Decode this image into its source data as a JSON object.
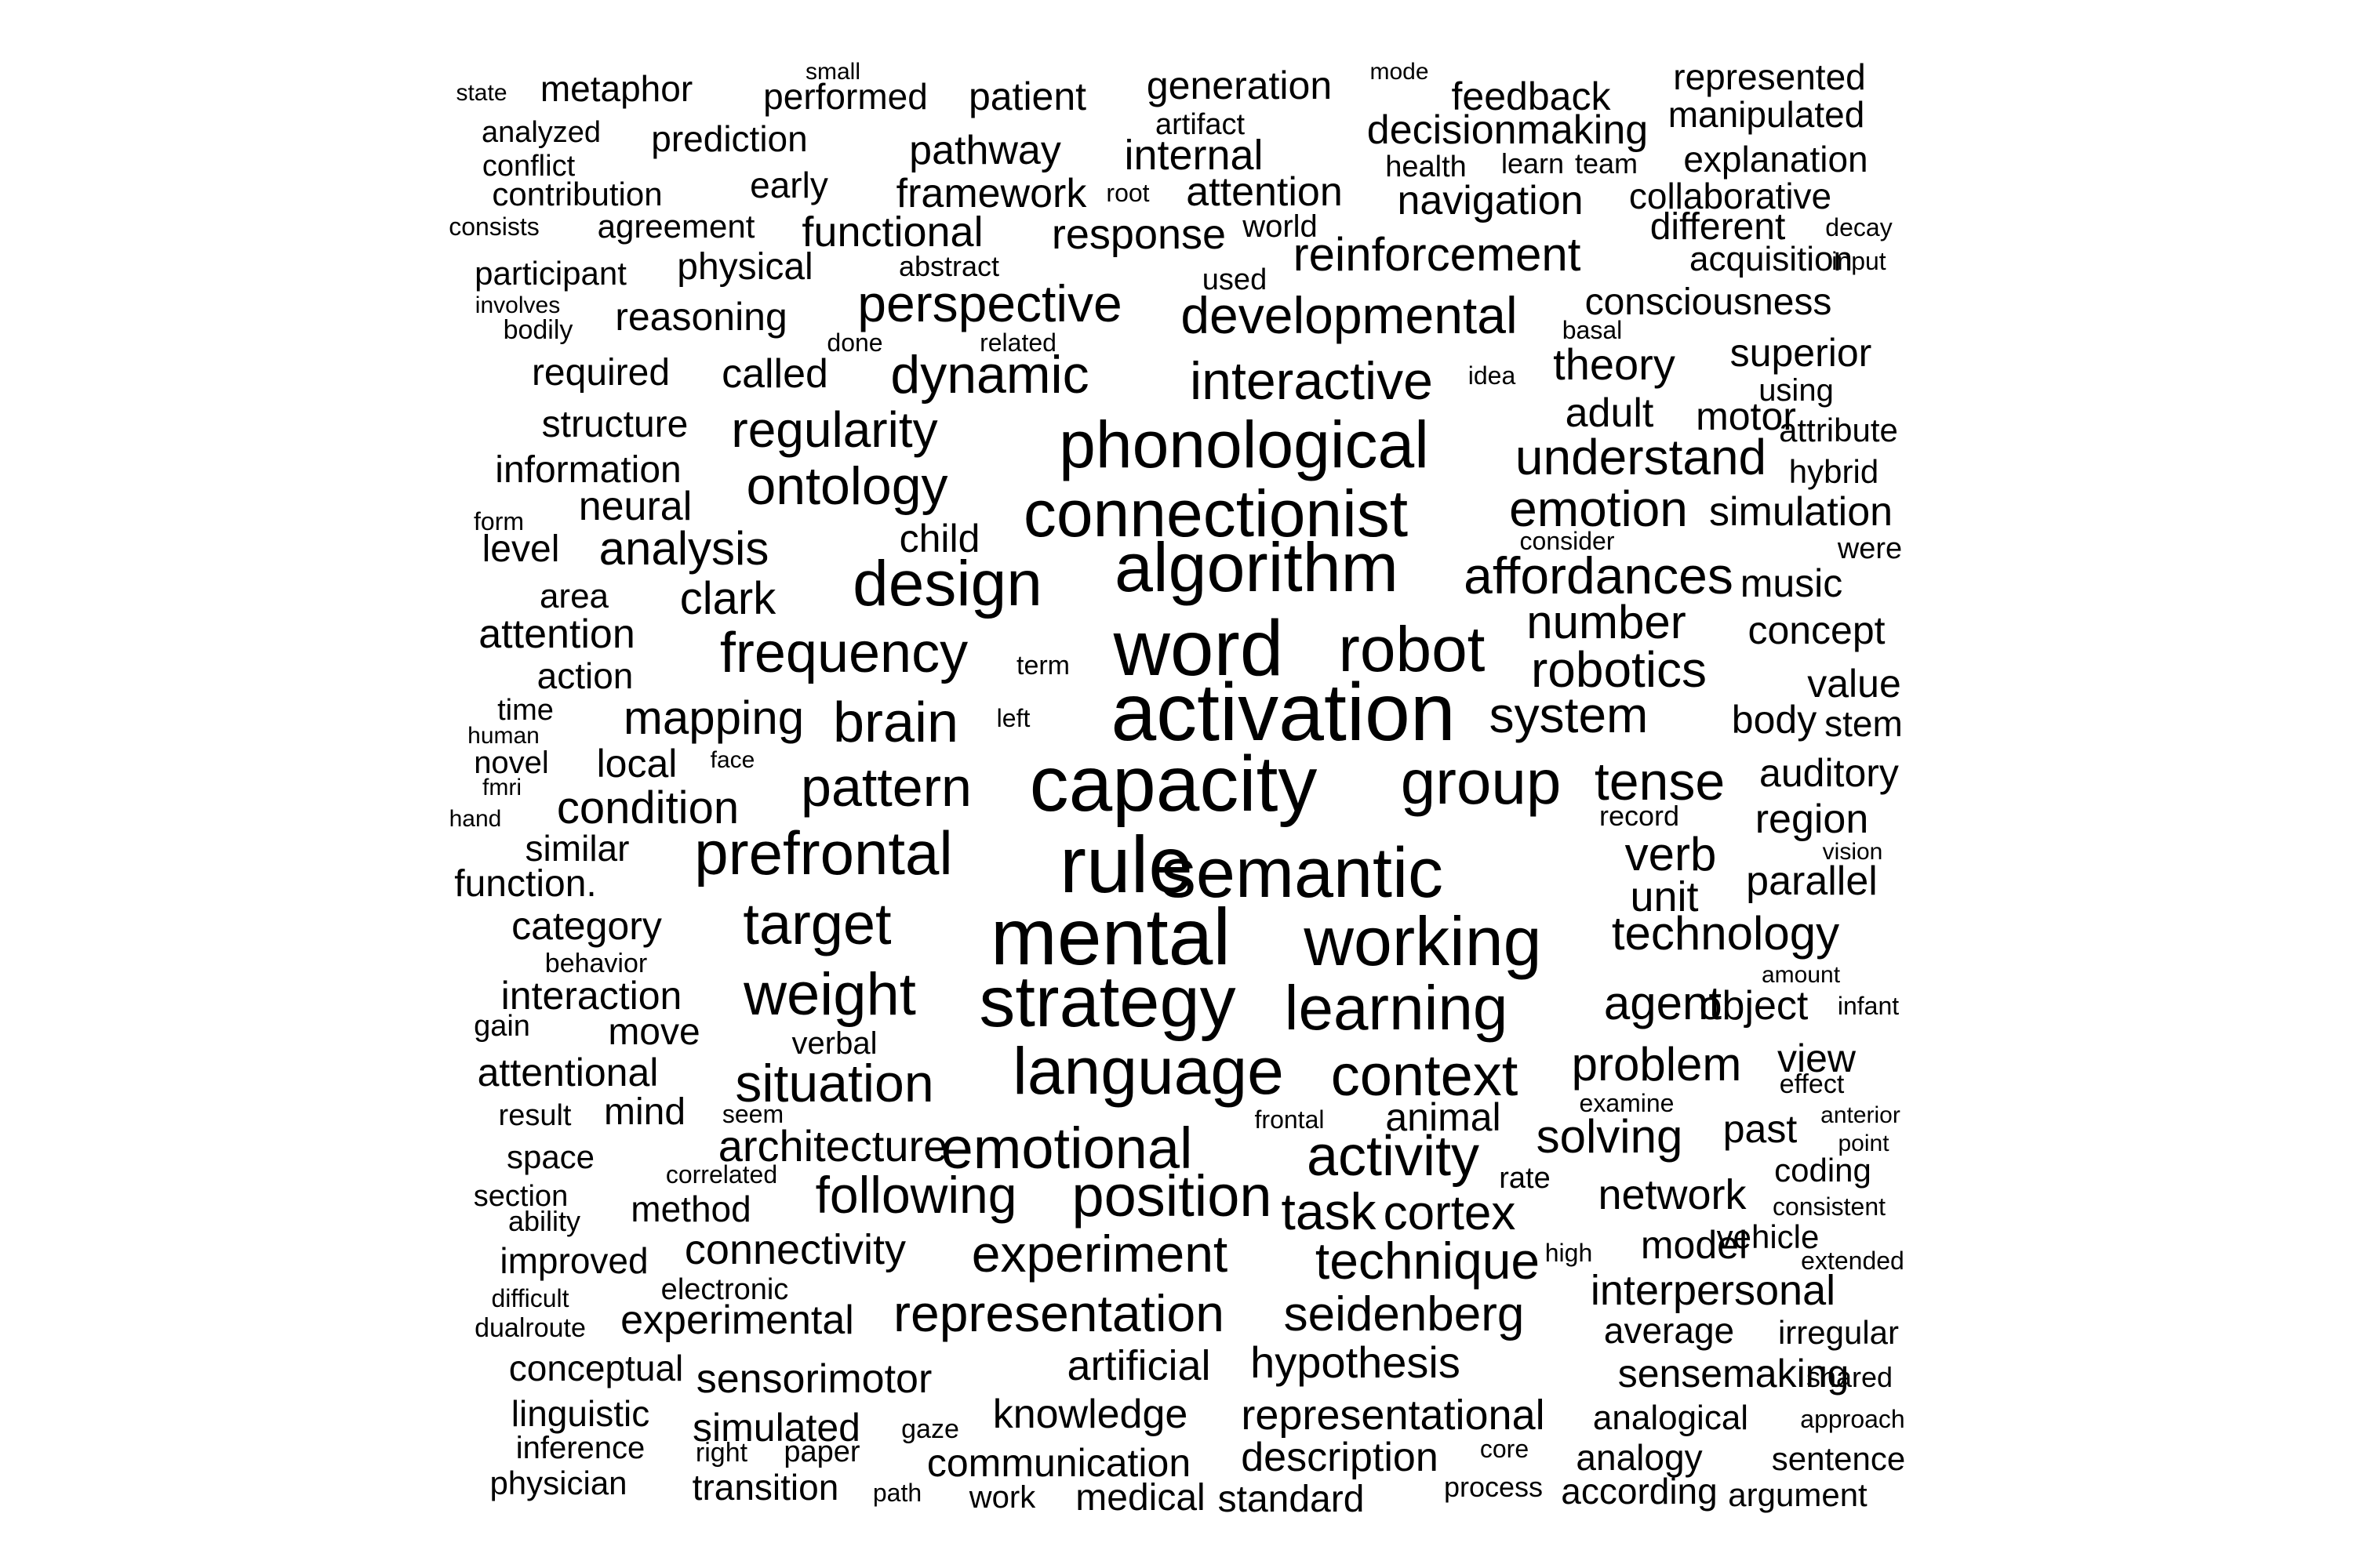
{
  "word_cloud": {
    "text_color": "#000000",
    "background_color": "#ffffff",
    "words": [
      "state",
      "metaphor",
      "small",
      "performed",
      "patient",
      "generation",
      "mode",
      "feedback",
      "represented",
      "analyzed",
      "prediction",
      "artifact",
      "decisionmaking",
      "manipulated",
      "conflict",
      "pathway",
      "internal",
      "health",
      "learn",
      "team",
      "explanation",
      "contribution",
      "early",
      "framework",
      "root",
      "attention",
      "navigation",
      "collaborative",
      "consists",
      "agreement",
      "functional",
      "response",
      "world",
      "different",
      "decay",
      "participant",
      "physical",
      "abstract",
      "reinforcement",
      "acquisition",
      "input",
      "used",
      "involves",
      "perspective",
      "consciousness",
      "bodily",
      "reasoning",
      "developmental",
      "basal",
      "done",
      "related",
      "required",
      "called",
      "dynamic",
      "theory",
      "superior",
      "interactive",
      "idea",
      "using",
      "adult",
      "motor",
      "attribute",
      "structure",
      "regularity",
      "information",
      "phonological",
      "understand",
      "hybrid",
      "ontology",
      "neural",
      "connectionist",
      "emotion",
      "simulation",
      "form",
      "child",
      "consider",
      "level",
      "analysis",
      "were",
      "algorithm",
      "affordances",
      "music",
      "design",
      "area",
      "clark",
      "number",
      "concept",
      "attention",
      "frequency",
      "word",
      "robot",
      "action",
      "term",
      "robotics",
      "value",
      "time",
      "mapping",
      "activation",
      "system",
      "left",
      "body",
      "human",
      "brain",
      "stem",
      "novel",
      "local",
      "face",
      "pattern",
      "capacity",
      "group",
      "tense",
      "auditory",
      "fmri",
      "condition",
      "hand",
      "record",
      "region",
      "similar",
      "vision",
      "prefrontal",
      "rule",
      "semantic",
      "verb",
      "function.",
      "parallel",
      "unit",
      "category",
      "target",
      "technology",
      "working",
      "mental",
      "behavior",
      "amount",
      "interaction",
      "weight",
      "strategy",
      "learning",
      "agent",
      "object",
      "infant",
      "gain",
      "move",
      "verbal",
      "attentional",
      "situation",
      "language",
      "context",
      "problem",
      "view",
      "effect",
      "seem",
      "examine",
      "result",
      "mind",
      "frontal",
      "animal",
      "anterior",
      "past",
      "architecture",
      "emotional",
      "solving",
      "point",
      "space",
      "activity",
      "correlated",
      "rate",
      "coding",
      "section",
      "following",
      "position",
      "network",
      "method",
      "task",
      "cortex",
      "consistent",
      "ability",
      "connectivity",
      "model",
      "vehicle",
      "improved",
      "experiment",
      "technique",
      "high",
      "extended",
      "electronic",
      "interpersonal",
      "difficult",
      "representation",
      "seidenberg",
      "experimental",
      "dualroute",
      "average",
      "irregular",
      "conceptual",
      "artificial",
      "hypothesis",
      "sensorimotor",
      "sensemaking",
      "shared",
      "linguistic",
      "knowledge",
      "representational",
      "analogical",
      "approach",
      "simulated",
      "gaze",
      "inference",
      "right",
      "paper",
      "description",
      "core",
      "analogy",
      "sentence",
      "communication",
      "physician",
      "transition",
      "path",
      "work",
      "medical",
      "standard",
      "process",
      "according",
      "argument"
    ]
  }
}
